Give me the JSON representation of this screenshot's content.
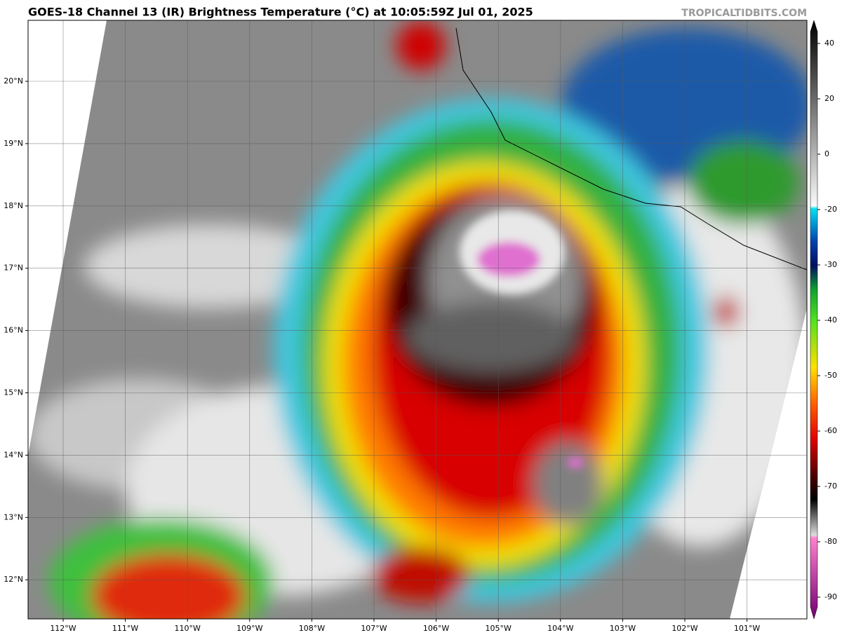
{
  "header": {
    "title": "GOES-18 Channel 13 (IR) Brightness Temperature (°C) at 10:05:59Z Jul 01, 2025",
    "watermark": "TROPICALTIDBITS.COM"
  },
  "map": {
    "lat_labels": [
      "20°N",
      "19°N",
      "18°N",
      "17°N",
      "16°N",
      "15°N",
      "14°N",
      "13°N",
      "12°N"
    ],
    "lon_labels": [
      "112°W",
      "111°W",
      "110°W",
      "109°W",
      "108°W",
      "107°W",
      "106°W",
      "105°W",
      "104°W",
      "103°W",
      "102°W",
      "101°W"
    ]
  },
  "colorbar": {
    "ticks": [
      40,
      20,
      0,
      -20,
      -30,
      -40,
      -50,
      -60,
      -70,
      -80,
      -90
    ]
  }
}
